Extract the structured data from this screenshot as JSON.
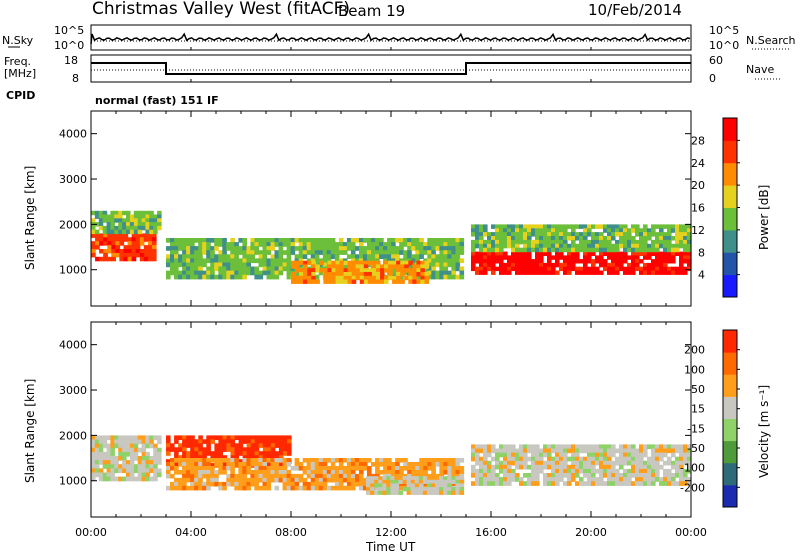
{
  "header": {
    "title": "Christmas Valley West (fitACF)",
    "beam": "Beam 19",
    "date": "10/Feb/2014"
  },
  "strips": {
    "nsky_label": "N.Sky",
    "nsky_ticks": [
      "10^5",
      "10^0"
    ],
    "nsearch_label": "N.Search",
    "nsearch_ticks": [
      "10^5",
      "10^0"
    ],
    "freq_label_line1": "Freq.",
    "freq_label_line2": "[MHz]",
    "freq_ticks": [
      "18",
      "8"
    ],
    "nave_label": "Nave",
    "nave_ticks": [
      "60",
      "0"
    ],
    "cpid_label": "CPID",
    "cpid_text": "normal (fast) 151 IF"
  },
  "chart_data": [
    {
      "type": "heatmap",
      "panel": "power",
      "ylabel": "Slant Range [km]",
      "yticks": [
        "4000",
        "3000",
        "2000",
        "1000"
      ],
      "ylim": [
        200,
        4500
      ],
      "colorbar_label": "Power [dB]",
      "colorbar_ticks": [
        "28",
        "24",
        "20",
        "16",
        "12",
        "8",
        "4"
      ],
      "colors": [
        "#1a1aff",
        "#2255aa",
        "#3f8f8a",
        "#6cbf3a",
        "#e6d21e",
        "#ff8c00",
        "#ff3300",
        "#ff0000"
      ],
      "bands": [
        {
          "t0": 0.0,
          "t1": 2.6,
          "r0": 1200,
          "r1": 1800,
          "level": 6
        },
        {
          "t0": 0.0,
          "t1": 2.8,
          "r0": 1800,
          "r1": 2300,
          "level": 3
        },
        {
          "t0": 3.0,
          "t1": 14.9,
          "r0": 800,
          "r1": 1700,
          "level": 3
        },
        {
          "t0": 8.0,
          "t1": 13.5,
          "r0": 700,
          "r1": 1200,
          "level": 5
        },
        {
          "t0": 15.2,
          "t1": 24.0,
          "r0": 900,
          "r1": 1400,
          "level": 7
        },
        {
          "t0": 15.2,
          "t1": 24.0,
          "r0": 1400,
          "r1": 2000,
          "level": 3
        }
      ]
    },
    {
      "type": "heatmap",
      "panel": "velocity",
      "ylabel": "Slant Range [km]",
      "yticks": [
        "4000",
        "3000",
        "2000",
        "1000"
      ],
      "ylim": [
        200,
        4500
      ],
      "colorbar_label": "Velocity [m s⁻¹]",
      "colorbar_ticks": [
        "200",
        "100",
        "50",
        "15",
        "-15",
        "-50",
        "-100",
        "-200"
      ],
      "colors": [
        "#1a2bb0",
        "#2d6b7a",
        "#4f9a3a",
        "#8fd26a",
        "#c8c8c0",
        "#ff9e1a",
        "#ff6a00",
        "#ff2800"
      ],
      "bands": [
        {
          "t0": 0.0,
          "t1": 2.8,
          "r0": 1000,
          "r1": 2000,
          "level": 4
        },
        {
          "t0": 3.0,
          "t1": 8.0,
          "r0": 1300,
          "r1": 2000,
          "level": 7
        },
        {
          "t0": 3.0,
          "t1": 14.9,
          "r0": 800,
          "r1": 1500,
          "level": 5
        },
        {
          "t0": 11.0,
          "t1": 14.9,
          "r0": 700,
          "r1": 1100,
          "level": 4
        },
        {
          "t0": 15.2,
          "t1": 24.0,
          "r0": 900,
          "r1": 1800,
          "level": 4
        }
      ]
    }
  ],
  "xaxis": {
    "label": "Time UT",
    "ticks": [
      "00:00",
      "04:00",
      "08:00",
      "12:00",
      "16:00",
      "20:00",
      "00:00"
    ]
  }
}
